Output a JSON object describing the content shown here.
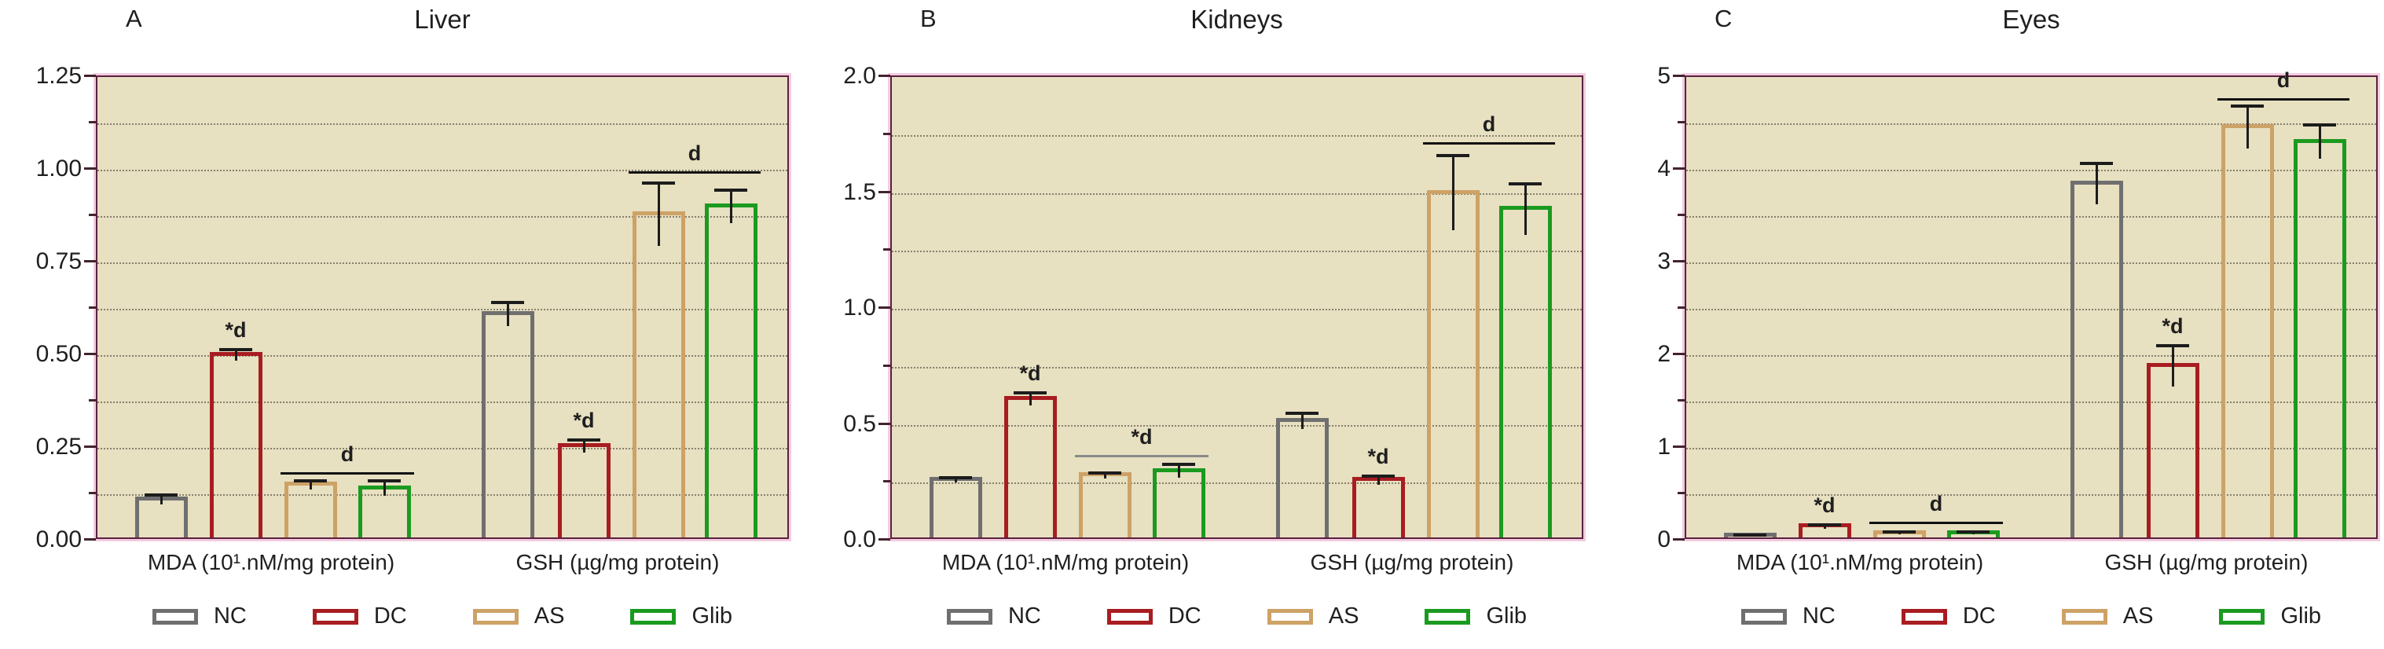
{
  "figure": {
    "description": "Oxidative stress markers bar charts",
    "panel_count": 3
  },
  "legend": [
    {
      "label": "NC",
      "color": "#6f6f6f"
    },
    {
      "label": "DC",
      "color": "#a81d21"
    },
    {
      "label": "AS",
      "color": "#cda266"
    },
    {
      "label": "Glib",
      "color": "#1b9a20"
    }
  ],
  "colors": {
    "plot_bg": "#e7e0c1",
    "frame": "#5c2040",
    "frame_glow": "#f3cce0",
    "gridline": "#6e6958",
    "error_bar": "#1c1c1c",
    "sig_line": "#111111",
    "sig_line_alt": "#8a8a8a",
    "text": "#1f1f1f"
  },
  "chart_data": [
    {
      "type": "bar",
      "panel_label": "A",
      "title": "Liver",
      "ylim": [
        0,
        1.25
      ],
      "y_axis": {
        "major_step": 0.25,
        "minor_step": 0.125,
        "grid": "dotted-minor",
        "tick_labels": [
          "0.00",
          "0.25",
          "0.50",
          "0.75",
          "1.00",
          "1.25"
        ]
      },
      "series_names": [
        "NC",
        "DC",
        "AS",
        "Glib"
      ],
      "groups": [
        {
          "label": "MDA (10¹.nM/mg protein)",
          "values": [
            0.11,
            0.5,
            0.15,
            0.14
          ],
          "errors": [
            0.012,
            0.015,
            0.012,
            0.02
          ],
          "star": {
            "text": "*d",
            "bar_index": 1
          },
          "sig": {
            "text": "d",
            "from_index": 2,
            "to_index": 3,
            "y": 0.185
          }
        },
        {
          "label": "GSH (µg/mg protein)",
          "values": [
            0.61,
            0.255,
            0.88,
            0.9
          ],
          "errors": [
            0.032,
            0.017,
            0.085,
            0.045
          ],
          "star": {
            "text": "*d",
            "bar_index": 1
          },
          "sig": {
            "text": "d",
            "from_index": 2,
            "to_index": 3,
            "y": 0.995
          }
        }
      ]
    },
    {
      "type": "bar",
      "panel_label": "B",
      "title": "Kidneys",
      "ylim": [
        0,
        2.0
      ],
      "y_axis": {
        "major_step": 0.5,
        "minor_step": 0.25,
        "grid": "dotted-minor",
        "tick_labels": [
          "0.0",
          "0.5",
          "1.0",
          "1.5",
          "2.0"
        ]
      },
      "series_names": [
        "NC",
        "DC",
        "AS",
        "Glib"
      ],
      "groups": [
        {
          "label": "MDA (10¹.nM/mg protein)",
          "values": [
            0.26,
            0.61,
            0.28,
            0.3
          ],
          "errors": [
            0.01,
            0.028,
            0.012,
            0.028
          ],
          "star": {
            "text": "*d",
            "bar_index": 1
          },
          "sig": {
            "text": "*d",
            "from_index": 2,
            "to_index": 3,
            "y": 0.37,
            "line_color": "#8a8a8a"
          }
        },
        {
          "label": "GSH (µg/mg protein)",
          "values": [
            0.515,
            0.26,
            1.5,
            1.43
          ],
          "errors": [
            0.035,
            0.018,
            0.16,
            0.11
          ],
          "star": {
            "text": "*d",
            "bar_index": 1
          },
          "sig": {
            "text": "d",
            "from_index": 2,
            "to_index": 3,
            "y": 1.72
          }
        }
      ]
    },
    {
      "type": "bar",
      "panel_label": "C",
      "title": "Eyes",
      "ylim": [
        0,
        5
      ],
      "y_axis": {
        "major_step": 1,
        "minor_step": 0.5,
        "grid": "dotted-minor",
        "tick_labels": [
          "0",
          "1",
          "2",
          "3",
          "4",
          "5"
        ]
      },
      "series_names": [
        "NC",
        "DC",
        "AS",
        "Glib"
      ],
      "groups": [
        {
          "label": "MDA (10¹.nM/mg protein)",
          "values": [
            0.05,
            0.15,
            0.08,
            0.08
          ],
          "errors": [
            0.01,
            0.02,
            0.015,
            0.01
          ],
          "star": {
            "text": "*d",
            "bar_index": 1
          },
          "sig": {
            "text": "d",
            "from_index": 2,
            "to_index": 3,
            "y": 0.2
          }
        },
        {
          "label": "GSH (µg/mg protein)",
          "values": [
            3.85,
            1.88,
            4.46,
            4.3
          ],
          "errors": [
            0.22,
            0.22,
            0.23,
            0.18
          ],
          "star": {
            "text": "*d",
            "bar_index": 1
          },
          "sig": {
            "text": "d",
            "from_index": 2,
            "to_index": 3,
            "y": 4.77
          }
        }
      ]
    }
  ]
}
